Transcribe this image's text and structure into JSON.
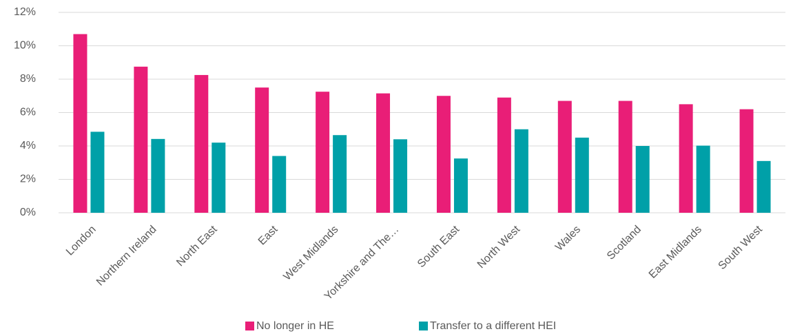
{
  "chart_data": {
    "type": "bar",
    "categories": [
      "London",
      "Northern Ireland",
      "North East",
      "East",
      "West Midlands",
      "Yorkshire and The…",
      "South East",
      "North West",
      "Wales",
      "Scotland",
      "East Midlands",
      "South West"
    ],
    "series": [
      {
        "name": "No longer in HE",
        "color": "#e91e77",
        "values": [
          10.7,
          8.75,
          8.25,
          7.5,
          7.25,
          7.15,
          7.0,
          6.9,
          6.7,
          6.7,
          6.5,
          6.2
        ]
      },
      {
        "name": "Transfer to a different HEI",
        "color": "#00a0a8",
        "values": [
          4.85,
          4.42,
          4.2,
          3.4,
          4.65,
          4.4,
          3.25,
          5.0,
          4.5,
          4.0,
          4.02,
          3.1
        ]
      }
    ],
    "ylim": [
      0,
      12
    ],
    "yticks": [
      {
        "value": 0,
        "label": "0%"
      },
      {
        "value": 2,
        "label": "2%"
      },
      {
        "value": 4,
        "label": "4%"
      },
      {
        "value": 6,
        "label": "6%"
      },
      {
        "value": 8,
        "label": "8%"
      },
      {
        "value": 10,
        "label": "10%"
      },
      {
        "value": 12,
        "label": "12%"
      }
    ],
    "grid": true,
    "legend": "bottom"
  }
}
